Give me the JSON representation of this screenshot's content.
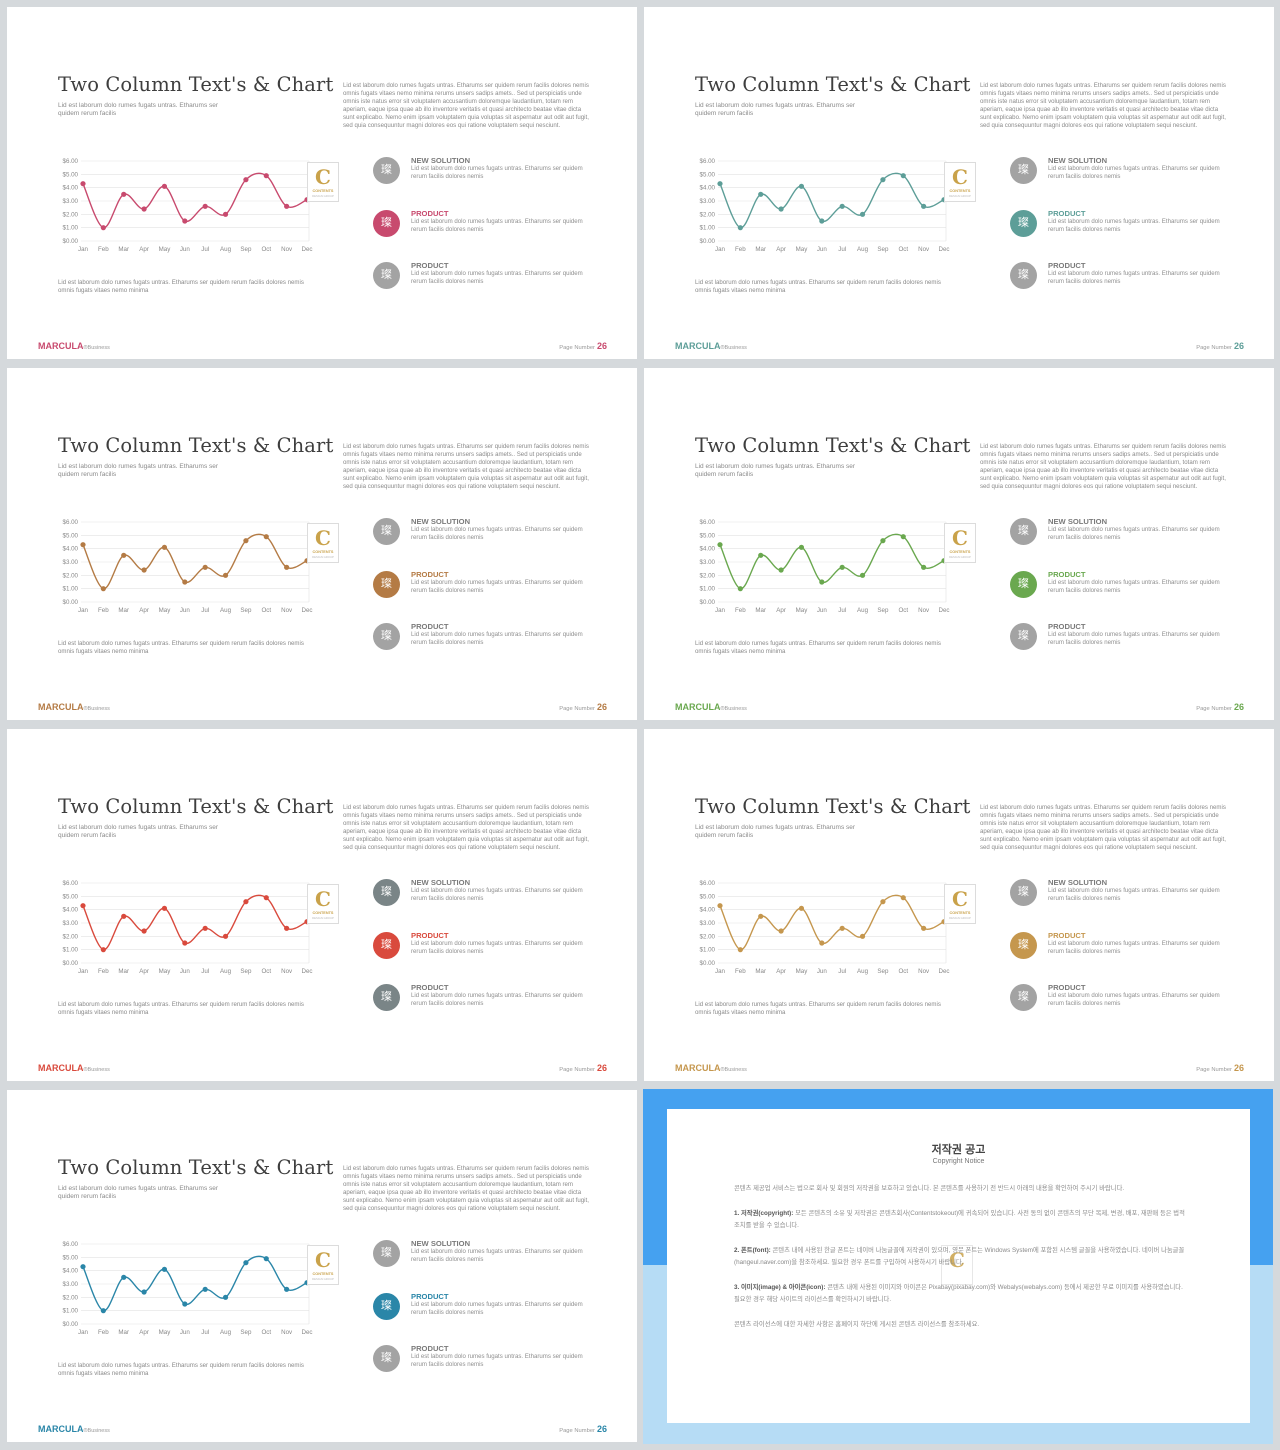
{
  "common": {
    "title": "Two Column Text's & Chart",
    "subtitle": "Lid est laborum dolo rumes fugats untras. Etharums ser quidem rerum facilis",
    "paragraph": "Lid est laborum dolo rumes fugats untras. Etharums ser quidem rerum facilis dolores nemis omnis fugats vitaes nemo minima rerums unsers sadips amets.. Sed ut perspiciatis unde omnis iste natus error sit voluptatem accusantium doloremque laudantium, totam rem aperiam, eaque ipsa quae ab illo inventore veritatis et quasi architecto beatae vitae dicta sunt explicabo. Nemo enim ipsam voluptatem quia voluptas sit aspernatur aut odit aut fugit, sed quia consequuntur magni dolores eos qui ratione voluptatem sequi nesciunt.",
    "note": "Lid est laborum dolo rumes fugats untras. Etharums ser quidem rerum facilis dolores nemis omnis fugats vitaes nemo minima",
    "logo_letter": "C",
    "logo_text": "CONTENTS",
    "logo_text2": "DESIGN GROUP",
    "items": [
      {
        "title": "NEW SOLUTION",
        "desc": "Lid est laborum dolo rumes fugats untras. Etharums ser quidem rerum facilis dolores nemis",
        "icon_char": "璨"
      },
      {
        "title": "PRODUCT",
        "desc": "Lid est laborum dolo rumes fugats untras. Etharums ser quidem rerum facilis dolores nemis",
        "icon_char": "璨"
      },
      {
        "title": "PRODUCT",
        "desc": "Lid est laborum dolo rumes fugats untras. Etharums ser quidem rerum facilis dolores nemis",
        "icon_char": "璨"
      }
    ],
    "brand": "MARCULA",
    "brand_sub": "®Business",
    "page_label": "Page Number",
    "page_number": "26"
  },
  "chart_data": {
    "type": "line",
    "categories": [
      "Jan",
      "Feb",
      "Mar",
      "Apr",
      "May",
      "Jun",
      "Jul",
      "Aug",
      "Sep",
      "Oct",
      "Nov",
      "Dec"
    ],
    "values": [
      4.3,
      1.0,
      3.5,
      2.4,
      4.1,
      1.5,
      2.6,
      2.0,
      4.6,
      4.9,
      2.6,
      3.1
    ],
    "y_ticks": [
      "$0.00",
      "$1.00",
      "$2.00",
      "$3.00",
      "$4.00",
      "$5.00",
      "$6.00"
    ],
    "ylim": [
      0,
      6
    ],
    "grid": true,
    "title": "",
    "xlabel": "",
    "ylabel": ""
  },
  "slides": [
    {
      "accent": "#c84a6e",
      "neutral": "#a3a3a3"
    },
    {
      "accent": "#5d9e98",
      "neutral": "#a3a3a3"
    },
    {
      "accent": "#b47b45",
      "neutral": "#a3a3a3"
    },
    {
      "accent": "#6aa84f",
      "neutral": "#a3a3a3"
    },
    {
      "accent": "#d94a3d",
      "neutral": "#7a8587"
    },
    {
      "accent": "#c5974e",
      "neutral": "#a3a3a3"
    },
    {
      "accent": "#2a86a8",
      "neutral": "#a3a3a3"
    }
  ],
  "copyright": {
    "title": "저작권 공고",
    "subtitle": "Copyright Notice",
    "intro": "콘텐츠 제공업 서비스는 법으로 회사 및 회원의 저작권을 보호하고 있습니다. 본 콘텐츠를 사용하기 전 반드시 아래의 내용을 확인하여 주시기 바랍니다.",
    "p1_head": "1. 저작권(copyright):",
    "p1_body": "모든 콘텐츠의 소유 및 저작권은 콘텐츠회사(Contentstokeout)에 귀속되어 있습니다. 사전 동의 없이 콘텐츠의 무단 복제, 변경, 배포, 재판매 등은 법적 조치를 받을 수 있습니다.",
    "p2_head": "2. 폰트(font):",
    "p2_body": "콘텐츠 내에 사용된 한글 폰트는 네이버 나눔글꼴에 저작권이 있으며, 영문 폰트는 Windows System에 포함된 시스템 글꼴을 사용하였습니다. 네이버 나눔글꼴(hangeul.naver.com)을 참조하세요. 필요한 경우 폰트를 구입하여 사용하시기 바랍니다.",
    "p3_head": "3. 이미지(image) & 아이콘(icon):",
    "p3_body": "콘텐츠 내에 사용된 이미지와 아이콘은 Pixabay(pixabay.com)와 Webalys(webalys.com) 등에서 제공한 무료 이미지를 사용하였습니다. 필요한 경우 해당 사이트의 라이선스를 확인하시기 바랍니다.",
    "outro": "콘텐츠 라이선스에 대한 자세한 사항은 홈페이지 하단에 게시된 콘텐츠 라이선스를 참조하세요."
  }
}
